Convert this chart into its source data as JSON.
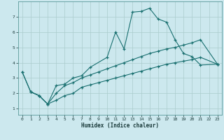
{
  "xlabel": "Humidex (Indice chaleur)",
  "bg_color": "#cce8ee",
  "grid_color": "#aacccc",
  "line_color": "#1a7070",
  "xlim": [
    -0.5,
    23.5
  ],
  "ylim": [
    0.6,
    8.0
  ],
  "xticks": [
    0,
    1,
    2,
    3,
    4,
    5,
    6,
    7,
    8,
    9,
    10,
    11,
    12,
    13,
    14,
    15,
    16,
    17,
    18,
    19,
    20,
    21,
    22,
    23
  ],
  "yticks": [
    1,
    2,
    3,
    4,
    5,
    6,
    7
  ],
  "curve1_x": [
    0,
    1,
    2,
    3,
    4,
    5,
    6,
    7,
    8,
    10,
    11,
    12,
    13,
    14,
    15,
    16,
    17,
    18,
    19,
    20,
    21,
    23
  ],
  "curve1_y": [
    3.4,
    2.1,
    1.85,
    1.3,
    2.5,
    2.6,
    3.0,
    3.15,
    3.7,
    4.35,
    6.0,
    4.9,
    7.3,
    7.35,
    7.55,
    6.85,
    6.65,
    5.5,
    4.6,
    4.4,
    3.85,
    3.9
  ],
  "curve2_x": [
    0,
    1,
    2,
    3,
    4,
    5,
    6,
    7,
    8,
    9,
    10,
    11,
    12,
    13,
    14,
    15,
    16,
    17,
    18,
    19,
    20,
    21,
    23
  ],
  "curve2_y": [
    3.4,
    2.1,
    1.85,
    1.3,
    2.0,
    2.5,
    2.7,
    3.0,
    3.2,
    3.4,
    3.6,
    3.8,
    4.0,
    4.2,
    4.4,
    4.6,
    4.75,
    4.9,
    5.0,
    5.15,
    5.3,
    5.5,
    3.9
  ],
  "curve3_x": [
    1,
    2,
    3,
    4,
    5,
    6,
    7,
    8,
    9,
    10,
    11,
    12,
    13,
    14,
    15,
    16,
    17,
    18,
    19,
    20,
    21,
    23
  ],
  "curve3_y": [
    2.1,
    1.85,
    1.3,
    1.55,
    1.85,
    2.0,
    2.4,
    2.55,
    2.7,
    2.85,
    3.0,
    3.15,
    3.3,
    3.45,
    3.6,
    3.75,
    3.9,
    4.0,
    4.1,
    4.2,
    4.35,
    3.9
  ]
}
